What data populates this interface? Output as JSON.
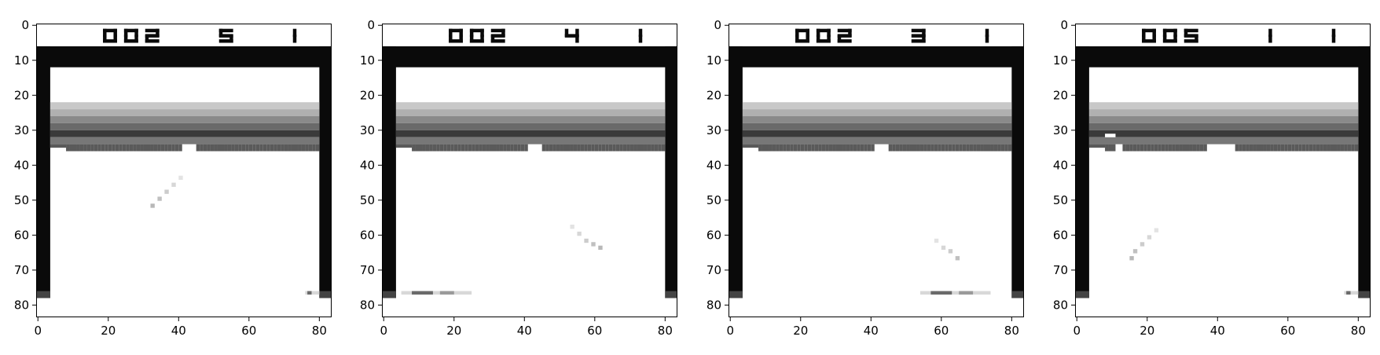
{
  "figure": {
    "panels": [
      {
        "score": "002",
        "lives": "5",
        "player": "1",
        "bricks": {
          "row_gaps_x": [
            41,
            42,
            43,
            44
          ]
        },
        "ball_trail": [
          [
            40,
            43
          ],
          [
            38,
            45
          ],
          [
            36,
            47
          ],
          [
            34,
            49
          ],
          [
            32,
            51
          ]
        ],
        "paddle": {
          "x_range": [
            76,
            80
          ],
          "y": 76
        }
      },
      {
        "score": "002",
        "lives": "4",
        "player": "1",
        "bricks": {
          "row_gaps_x": [
            41,
            42,
            43,
            44
          ]
        },
        "ball_trail": [
          [
            53,
            57
          ],
          [
            55,
            59
          ],
          [
            57,
            61
          ],
          [
            59,
            62
          ],
          [
            61,
            63
          ]
        ],
        "paddle": {
          "x_range": [
            5,
            25
          ],
          "y": 76
        }
      },
      {
        "score": "002",
        "lives": "3",
        "player": "1",
        "bricks": {
          "row_gaps_x": [
            41,
            42,
            43,
            44
          ]
        },
        "ball_trail": [
          [
            58,
            61
          ],
          [
            60,
            63
          ],
          [
            62,
            64
          ],
          [
            64,
            66
          ]
        ],
        "paddle": {
          "x_range": [
            54,
            74
          ],
          "y": 76
        }
      },
      {
        "score": "005",
        "lives": "1",
        "player": "1",
        "bricks": {
          "row_gaps_x": [
            37,
            38,
            39,
            40,
            41,
            42,
            43,
            44
          ]
        },
        "ball_trail": [
          [
            22,
            58
          ],
          [
            20,
            60
          ],
          [
            18,
            62
          ],
          [
            16,
            64
          ],
          [
            15,
            66
          ]
        ],
        "paddle": {
          "x_range": [
            76,
            80
          ],
          "y": 76
        }
      }
    ],
    "axes": {
      "x_ticks": [
        0,
        20,
        40,
        60,
        80
      ],
      "y_ticks": [
        0,
        10,
        20,
        30,
        40,
        50,
        60,
        70,
        80
      ],
      "xlim": [
        -0.5,
        83.5
      ],
      "ylim": [
        83.5,
        -0.5
      ]
    },
    "colors": {
      "wall": "#0a0a0a",
      "band_light": "#c8c8c8",
      "band_mid": "#8a8a8a",
      "band_dark": "#3a3a3a",
      "brick_row": "#5a5a5a",
      "ball": "#b0b0b0",
      "paddle": "#6a6a6a",
      "background": "#ffffff"
    }
  }
}
